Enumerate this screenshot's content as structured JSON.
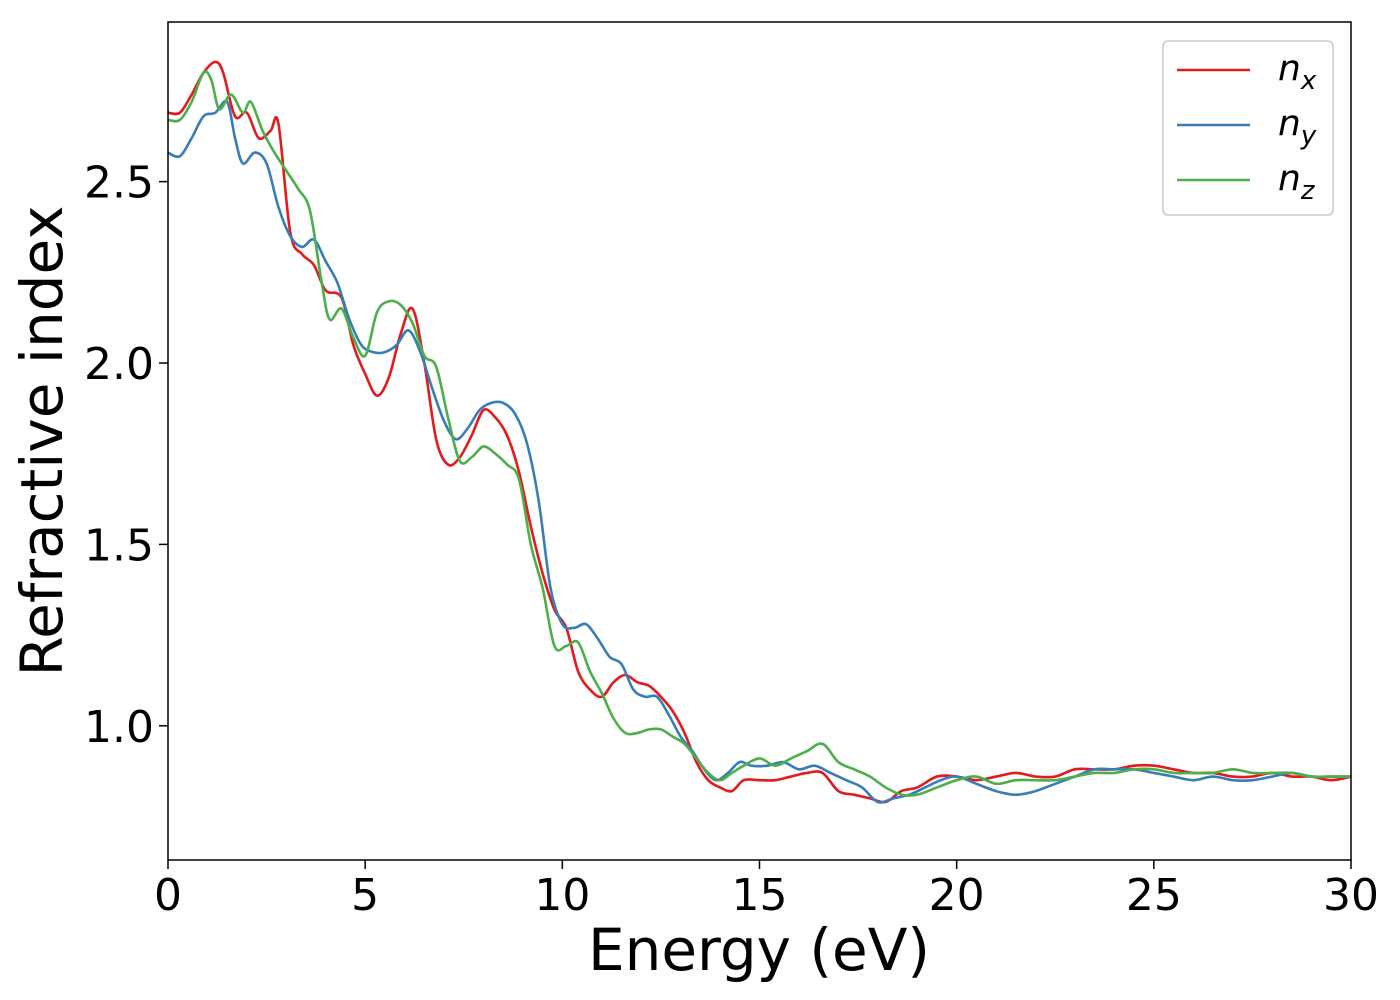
{
  "chart_data": {
    "type": "line",
    "title": "",
    "xlabel": "Energy (eV)",
    "ylabel": "Refractive index",
    "xlim": [
      0,
      30
    ],
    "ylim": [
      0.63,
      2.94
    ],
    "xticks": [
      0,
      5,
      10,
      15,
      20,
      25,
      30
    ],
    "yticks": [
      1.0,
      1.5,
      2.0,
      2.5
    ],
    "xtick_labels": [
      "0",
      "5",
      "10",
      "15",
      "20",
      "25",
      "30"
    ],
    "ytick_labels": [
      "1.0",
      "1.5",
      "2.0",
      "2.5"
    ],
    "grid": false,
    "legend_position": "top-right",
    "series": [
      {
        "name": "n",
        "subscript": "x",
        "color": "#e41a1c",
        "x": [
          0,
          0.3,
          0.6,
          0.9,
          1.2,
          1.4,
          1.7,
          2.0,
          2.3,
          2.6,
          2.8,
          3.1,
          3.4,
          3.7,
          4.0,
          4.4,
          4.7,
          5.0,
          5.3,
          5.6,
          5.9,
          6.2,
          6.5,
          6.8,
          7.1,
          7.4,
          7.7,
          8.0,
          8.3,
          8.6,
          8.9,
          9.2,
          9.5,
          9.8,
          10.1,
          10.4,
          10.7,
          11.0,
          11.3,
          11.6,
          11.9,
          12.2,
          12.5,
          12.8,
          13.1,
          13.4,
          13.7,
          14.0,
          14.3,
          14.6,
          15.0,
          15.4,
          15.8,
          16.2,
          16.6,
          17.0,
          17.4,
          17.8,
          18.2,
          18.6,
          19.0,
          19.5,
          20.0,
          20.5,
          21.0,
          21.5,
          22.0,
          22.5,
          23.0,
          23.5,
          24.0,
          24.5,
          25.0,
          25.5,
          26.0,
          26.5,
          27.0,
          27.5,
          28.0,
          28.5,
          29.0,
          29.5,
          30.0
        ],
        "y": [
          2.69,
          2.69,
          2.74,
          2.8,
          2.83,
          2.8,
          2.68,
          2.69,
          2.62,
          2.64,
          2.66,
          2.36,
          2.3,
          2.27,
          2.2,
          2.18,
          2.05,
          1.97,
          1.91,
          1.96,
          2.08,
          2.15,
          2.0,
          1.79,
          1.72,
          1.74,
          1.8,
          1.87,
          1.85,
          1.8,
          1.7,
          1.55,
          1.42,
          1.32,
          1.27,
          1.15,
          1.1,
          1.08,
          1.12,
          1.14,
          1.12,
          1.11,
          1.08,
          1.04,
          0.98,
          0.9,
          0.85,
          0.83,
          0.82,
          0.85,
          0.85,
          0.85,
          0.86,
          0.87,
          0.87,
          0.82,
          0.81,
          0.8,
          0.79,
          0.82,
          0.83,
          0.86,
          0.86,
          0.85,
          0.86,
          0.87,
          0.86,
          0.86,
          0.88,
          0.88,
          0.88,
          0.89,
          0.89,
          0.88,
          0.87,
          0.87,
          0.86,
          0.86,
          0.87,
          0.86,
          0.86,
          0.85,
          0.86
        ]
      },
      {
        "name": "n",
        "subscript": "y",
        "color": "#377eb8",
        "x": [
          0,
          0.3,
          0.6,
          0.9,
          1.2,
          1.5,
          1.7,
          1.9,
          2.2,
          2.5,
          2.8,
          3.1,
          3.4,
          3.7,
          4.0,
          4.3,
          4.6,
          4.9,
          5.2,
          5.5,
          5.8,
          6.1,
          6.4,
          6.7,
          7.0,
          7.3,
          7.6,
          7.9,
          8.2,
          8.5,
          8.8,
          9.1,
          9.4,
          9.7,
          10.0,
          10.3,
          10.6,
          10.9,
          11.2,
          11.5,
          11.8,
          12.1,
          12.4,
          12.7,
          13.0,
          13.3,
          13.6,
          13.9,
          14.2,
          14.5,
          14.8,
          15.2,
          15.6,
          16.0,
          16.4,
          16.8,
          17.2,
          17.6,
          18.0,
          18.4,
          18.8,
          19.2,
          19.6,
          20.0,
          20.5,
          21.0,
          21.5,
          22.0,
          22.5,
          23.0,
          23.5,
          24.0,
          24.5,
          25.0,
          25.5,
          26.0,
          26.5,
          27.0,
          27.5,
          28.0,
          28.5,
          29.0,
          29.5,
          30.0
        ],
        "y": [
          2.58,
          2.57,
          2.62,
          2.68,
          2.69,
          2.72,
          2.62,
          2.55,
          2.58,
          2.55,
          2.43,
          2.35,
          2.32,
          2.34,
          2.28,
          2.22,
          2.12,
          2.05,
          2.03,
          2.03,
          2.05,
          2.09,
          2.03,
          1.93,
          1.84,
          1.79,
          1.82,
          1.87,
          1.89,
          1.89,
          1.86,
          1.78,
          1.62,
          1.38,
          1.28,
          1.27,
          1.28,
          1.24,
          1.19,
          1.17,
          1.1,
          1.08,
          1.08,
          1.03,
          0.97,
          0.93,
          0.88,
          0.85,
          0.87,
          0.9,
          0.89,
          0.89,
          0.9,
          0.88,
          0.89,
          0.87,
          0.85,
          0.83,
          0.79,
          0.8,
          0.81,
          0.83,
          0.85,
          0.86,
          0.84,
          0.82,
          0.81,
          0.82,
          0.84,
          0.86,
          0.88,
          0.88,
          0.88,
          0.87,
          0.86,
          0.85,
          0.86,
          0.85,
          0.85,
          0.86,
          0.87,
          0.86,
          0.86,
          0.86
        ]
      },
      {
        "name": "n",
        "subscript": "z",
        "color": "#4daf4a",
        "x": [
          0,
          0.3,
          0.6,
          0.9,
          1.1,
          1.3,
          1.6,
          1.9,
          2.1,
          2.4,
          2.7,
          3.0,
          3.3,
          3.6,
          3.9,
          4.1,
          4.4,
          4.7,
          5.0,
          5.3,
          5.6,
          5.9,
          6.2,
          6.5,
          6.8,
          7.1,
          7.4,
          7.7,
          8.0,
          8.3,
          8.6,
          8.9,
          9.2,
          9.5,
          9.8,
          10.1,
          10.4,
          10.7,
          11.0,
          11.3,
          11.6,
          11.9,
          12.2,
          12.5,
          12.8,
          13.1,
          13.4,
          13.7,
          14.0,
          14.3,
          14.6,
          15.0,
          15.4,
          15.8,
          16.2,
          16.6,
          17.0,
          17.4,
          17.8,
          18.2,
          18.6,
          19.0,
          19.5,
          20.0,
          20.5,
          21.0,
          21.5,
          22.0,
          22.5,
          23.0,
          23.5,
          24.0,
          24.5,
          25.0,
          25.5,
          26.0,
          26.5,
          27.0,
          27.5,
          28.0,
          28.5,
          29.0,
          29.5,
          30.0
        ],
        "y": [
          2.67,
          2.67,
          2.72,
          2.8,
          2.78,
          2.7,
          2.74,
          2.69,
          2.72,
          2.64,
          2.58,
          2.53,
          2.48,
          2.42,
          2.22,
          2.12,
          2.15,
          2.07,
          2.02,
          2.14,
          2.17,
          2.16,
          2.11,
          2.02,
          1.99,
          1.85,
          1.73,
          1.74,
          1.77,
          1.75,
          1.72,
          1.68,
          1.5,
          1.38,
          1.22,
          1.22,
          1.23,
          1.15,
          1.09,
          1.02,
          0.98,
          0.98,
          0.99,
          0.99,
          0.97,
          0.95,
          0.91,
          0.87,
          0.85,
          0.87,
          0.89,
          0.91,
          0.89,
          0.91,
          0.93,
          0.95,
          0.9,
          0.88,
          0.86,
          0.83,
          0.81,
          0.81,
          0.83,
          0.85,
          0.86,
          0.84,
          0.85,
          0.85,
          0.85,
          0.86,
          0.87,
          0.87,
          0.88,
          0.88,
          0.87,
          0.87,
          0.87,
          0.88,
          0.87,
          0.87,
          0.87,
          0.86,
          0.86,
          0.86
        ]
      }
    ]
  }
}
